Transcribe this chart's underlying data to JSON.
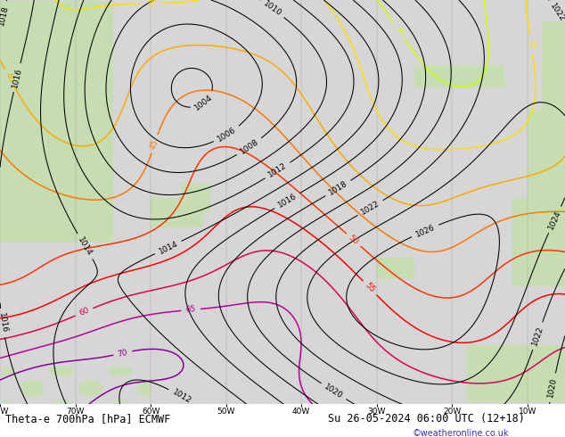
{
  "title_left": "Theta-e 700hPa [hPa] ECMWF",
  "title_right": "Su 26-05-2024 06:00 UTC (12+18)",
  "watermark": "©weatheronline.co.uk",
  "fig_width": 6.34,
  "fig_height": 4.9,
  "dpi": 100,
  "sea_color": "#d8d8d8",
  "land_color": "#c8ddb8",
  "land_color2": "#b8d4a0",
  "title_fontsize": 8.5,
  "watermark_color": "#3333bb",
  "watermark_fontsize": 7,
  "theta_colors": {
    "30": "#ccff00",
    "35": "#ffdd00",
    "40": "#ffaa00",
    "45": "#ff7700",
    "50": "#ff3300",
    "55": "#ff0000",
    "60": "#dd0055",
    "65": "#bb0099",
    "70": "#880099",
    "75": "#660099"
  },
  "pressure_color": "black",
  "grid_color": "#aaaaaa",
  "lon_min": -80,
  "lon_max": -5,
  "lat_min": 20,
  "lat_max": 75
}
